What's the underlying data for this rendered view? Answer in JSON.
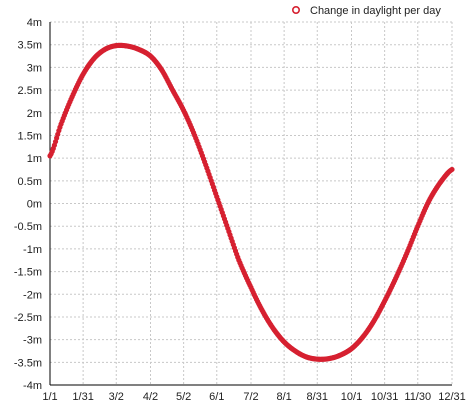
{
  "chart_data": {
    "type": "scatter",
    "title": "",
    "xlabel": "",
    "ylabel": "",
    "legend": {
      "position": "top-right",
      "entry": "Change in daylight per day"
    },
    "colors": {
      "series": "#d62030",
      "grid": "#c8c8c8",
      "axis": "#000000"
    },
    "grid": true,
    "x_ticks": [
      "1/1",
      "1/31",
      "3/2",
      "4/2",
      "5/2",
      "6/1",
      "7/2",
      "8/1",
      "8/31",
      "10/1",
      "10/31",
      "11/30",
      "12/31"
    ],
    "y_ticks": [
      "4m",
      "3.5m",
      "3m",
      "2.5m",
      "2m",
      "1.5m",
      "1m",
      "0.5m",
      "0m",
      "-0.5m",
      "-1m",
      "-1.5m",
      "-2m",
      "-2.5m",
      "-3m",
      "-3.5m",
      "-4m"
    ],
    "xlim": [
      "1/1",
      "12/31"
    ],
    "ylim": [
      -4,
      4
    ],
    "y_unit": "minutes",
    "series": [
      {
        "name": "Change in daylight per day",
        "x": [
          "1/1",
          "1/11",
          "1/21",
          "1/31",
          "2/10",
          "2/20",
          "3/2",
          "3/12",
          "3/22",
          "4/2",
          "4/12",
          "4/22",
          "5/2",
          "5/12",
          "5/22",
          "6/1",
          "6/11",
          "6/21",
          "7/2",
          "7/12",
          "7/22",
          "8/1",
          "8/11",
          "8/21",
          "8/31",
          "9/10",
          "9/20",
          "10/1",
          "10/11",
          "10/21",
          "10/31",
          "11/10",
          "11/20",
          "11/30",
          "12/10",
          "12/20",
          "12/31"
        ],
        "y": [
          1.05,
          1.75,
          2.35,
          2.85,
          3.2,
          3.4,
          3.48,
          3.47,
          3.4,
          3.25,
          2.95,
          2.5,
          2.05,
          1.5,
          0.85,
          0.15,
          -0.55,
          -1.25,
          -1.85,
          -2.35,
          -2.75,
          -3.05,
          -3.25,
          -3.38,
          -3.43,
          -3.42,
          -3.35,
          -3.2,
          -2.95,
          -2.6,
          -2.15,
          -1.65,
          -1.1,
          -0.5,
          0.05,
          0.45,
          0.75
        ]
      }
    ]
  }
}
